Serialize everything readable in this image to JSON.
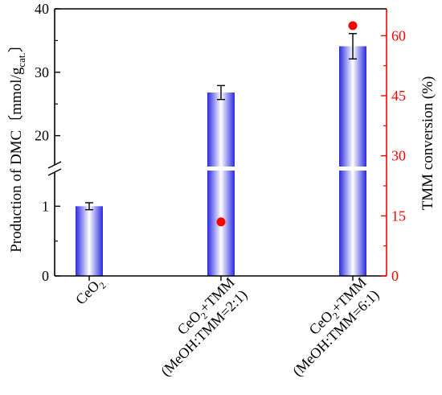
{
  "colors": {
    "axis_left": "#000000",
    "axis_right": "#ff0000",
    "bar_edge": "#2a2ae0",
    "bar_mid": "#ffffff",
    "marker": "#ff0000"
  },
  "chart_data": {
    "type": "bar",
    "categories": [
      {
        "line1": "CeO",
        "sub1": "2",
        "line2": ""
      },
      {
        "line1": "CeO",
        "sub1": "2",
        "line1b": "+TMM",
        "line2": "(MeOH:TMM=2:1)"
      },
      {
        "line1": "CeO",
        "sub1": "2",
        "line1b": "+TMM",
        "line2": "(MeOH:TMM=6:1)"
      }
    ],
    "series": [
      {
        "axis": "left",
        "type": "bar",
        "values": [
          1.0,
          26.8,
          34.1
        ],
        "errors": [
          0.05,
          1.1,
          2.0
        ]
      },
      {
        "axis": "right",
        "type": "scatter",
        "values": [
          null,
          13.5,
          62.5
        ]
      }
    ],
    "ylabel_left": {
      "main": "Production of DMC〔mmol/g",
      "sub": "cat.",
      "tail": "〕"
    },
    "ylabel_right": "TMM conversion (%)",
    "y_left_lower": {
      "range": [
        0,
        1.5
      ],
      "ticks": [
        "0",
        "1"
      ]
    },
    "y_left_upper": {
      "range": [
        15,
        40
      ],
      "ticks": [
        "20",
        "30",
        "40"
      ]
    },
    "y_right": {
      "range": [
        0,
        66.7
      ],
      "ticks": [
        "0",
        "15",
        "30",
        "45",
        "60"
      ]
    },
    "axis_break": true,
    "grid": false,
    "legend": "none"
  }
}
